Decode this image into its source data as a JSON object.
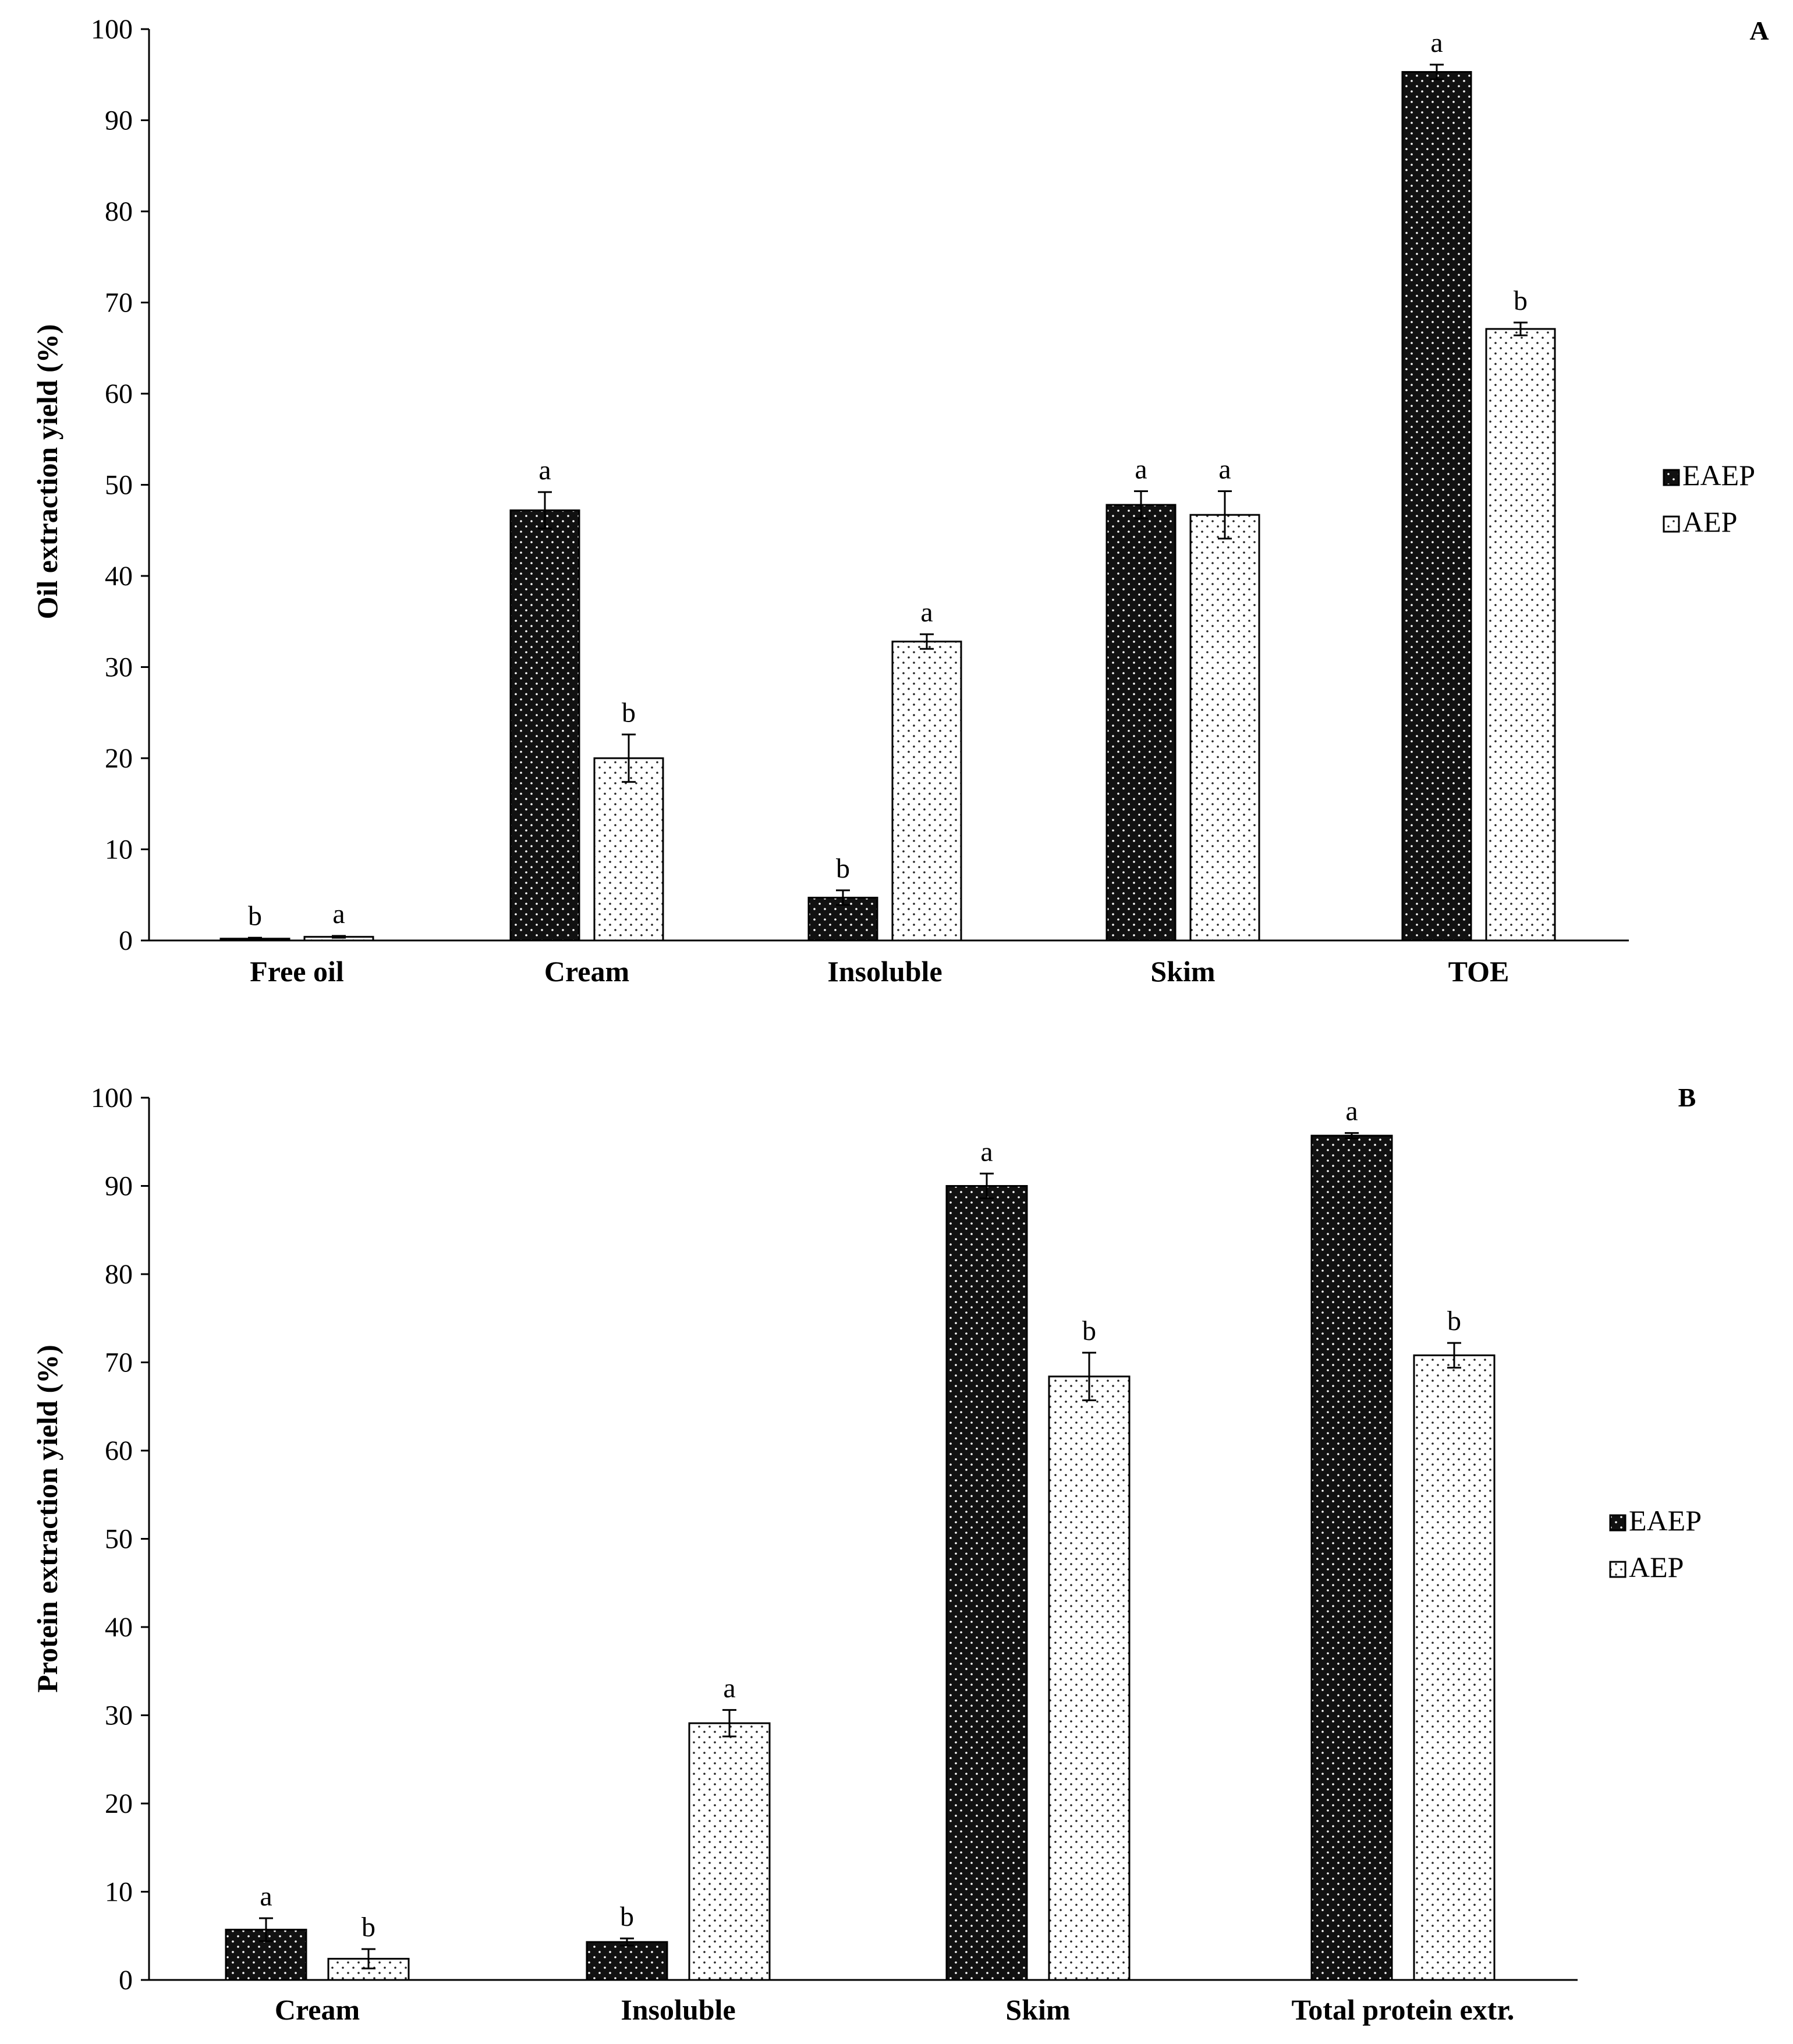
{
  "series_colors": {
    "EAEP": "#111111",
    "AEP": "#ffffff"
  },
  "chart_data": [
    {
      "panel": "A",
      "type": "bar",
      "title": "",
      "ylabel": "Oil extraction yield (%)",
      "xlabel": "",
      "ylim": [
        0,
        100
      ],
      "yticks": [
        "0",
        "10",
        "20",
        "30",
        "40",
        "50",
        "60",
        "70",
        "80",
        "90",
        "100"
      ],
      "legend": [
        "EAEP",
        "AEP"
      ],
      "legend_position": "right",
      "categories": [
        "Free oil",
        "Cream",
        "Insoluble",
        "Skim",
        "TOE"
      ],
      "series": [
        {
          "name": "EAEP",
          "values": [
            0.2,
            47.2,
            4.7,
            47.8,
            95.3
          ],
          "errors": [
            0.1,
            2.0,
            0.8,
            1.5,
            0.8
          ],
          "letters": [
            "b",
            "a",
            "b",
            "a",
            "a"
          ]
        },
        {
          "name": "AEP",
          "values": [
            0.4,
            20.0,
            32.8,
            46.7,
            67.1
          ],
          "errors": [
            0.1,
            2.6,
            0.8,
            2.6,
            0.7
          ],
          "letters": [
            "a",
            "b",
            "a",
            "a",
            "b"
          ]
        }
      ]
    },
    {
      "panel": "B",
      "type": "bar",
      "title": "",
      "ylabel": "Protein extraction yield (%)",
      "xlabel": "",
      "ylim": [
        0,
        100
      ],
      "yticks": [
        "0",
        "10",
        "20",
        "30",
        "40",
        "50",
        "60",
        "70",
        "80",
        "90",
        "100"
      ],
      "legend": [
        "EAEP",
        "AEP"
      ],
      "legend_position": "right",
      "categories": [
        "Cream",
        "Insoluble",
        "Skim",
        "Total protein extr."
      ],
      "series": [
        {
          "name": "EAEP",
          "values": [
            5.7,
            4.3,
            90.0,
            95.7
          ],
          "errors": [
            1.3,
            0.4,
            1.4,
            0.3
          ],
          "letters": [
            "a",
            "b",
            "a",
            "a"
          ]
        },
        {
          "name": "AEP",
          "values": [
            2.4,
            29.1,
            68.4,
            70.8
          ],
          "errors": [
            1.1,
            1.5,
            2.7,
            1.4
          ],
          "letters": [
            "b",
            "a",
            "b",
            "b"
          ]
        }
      ]
    }
  ]
}
